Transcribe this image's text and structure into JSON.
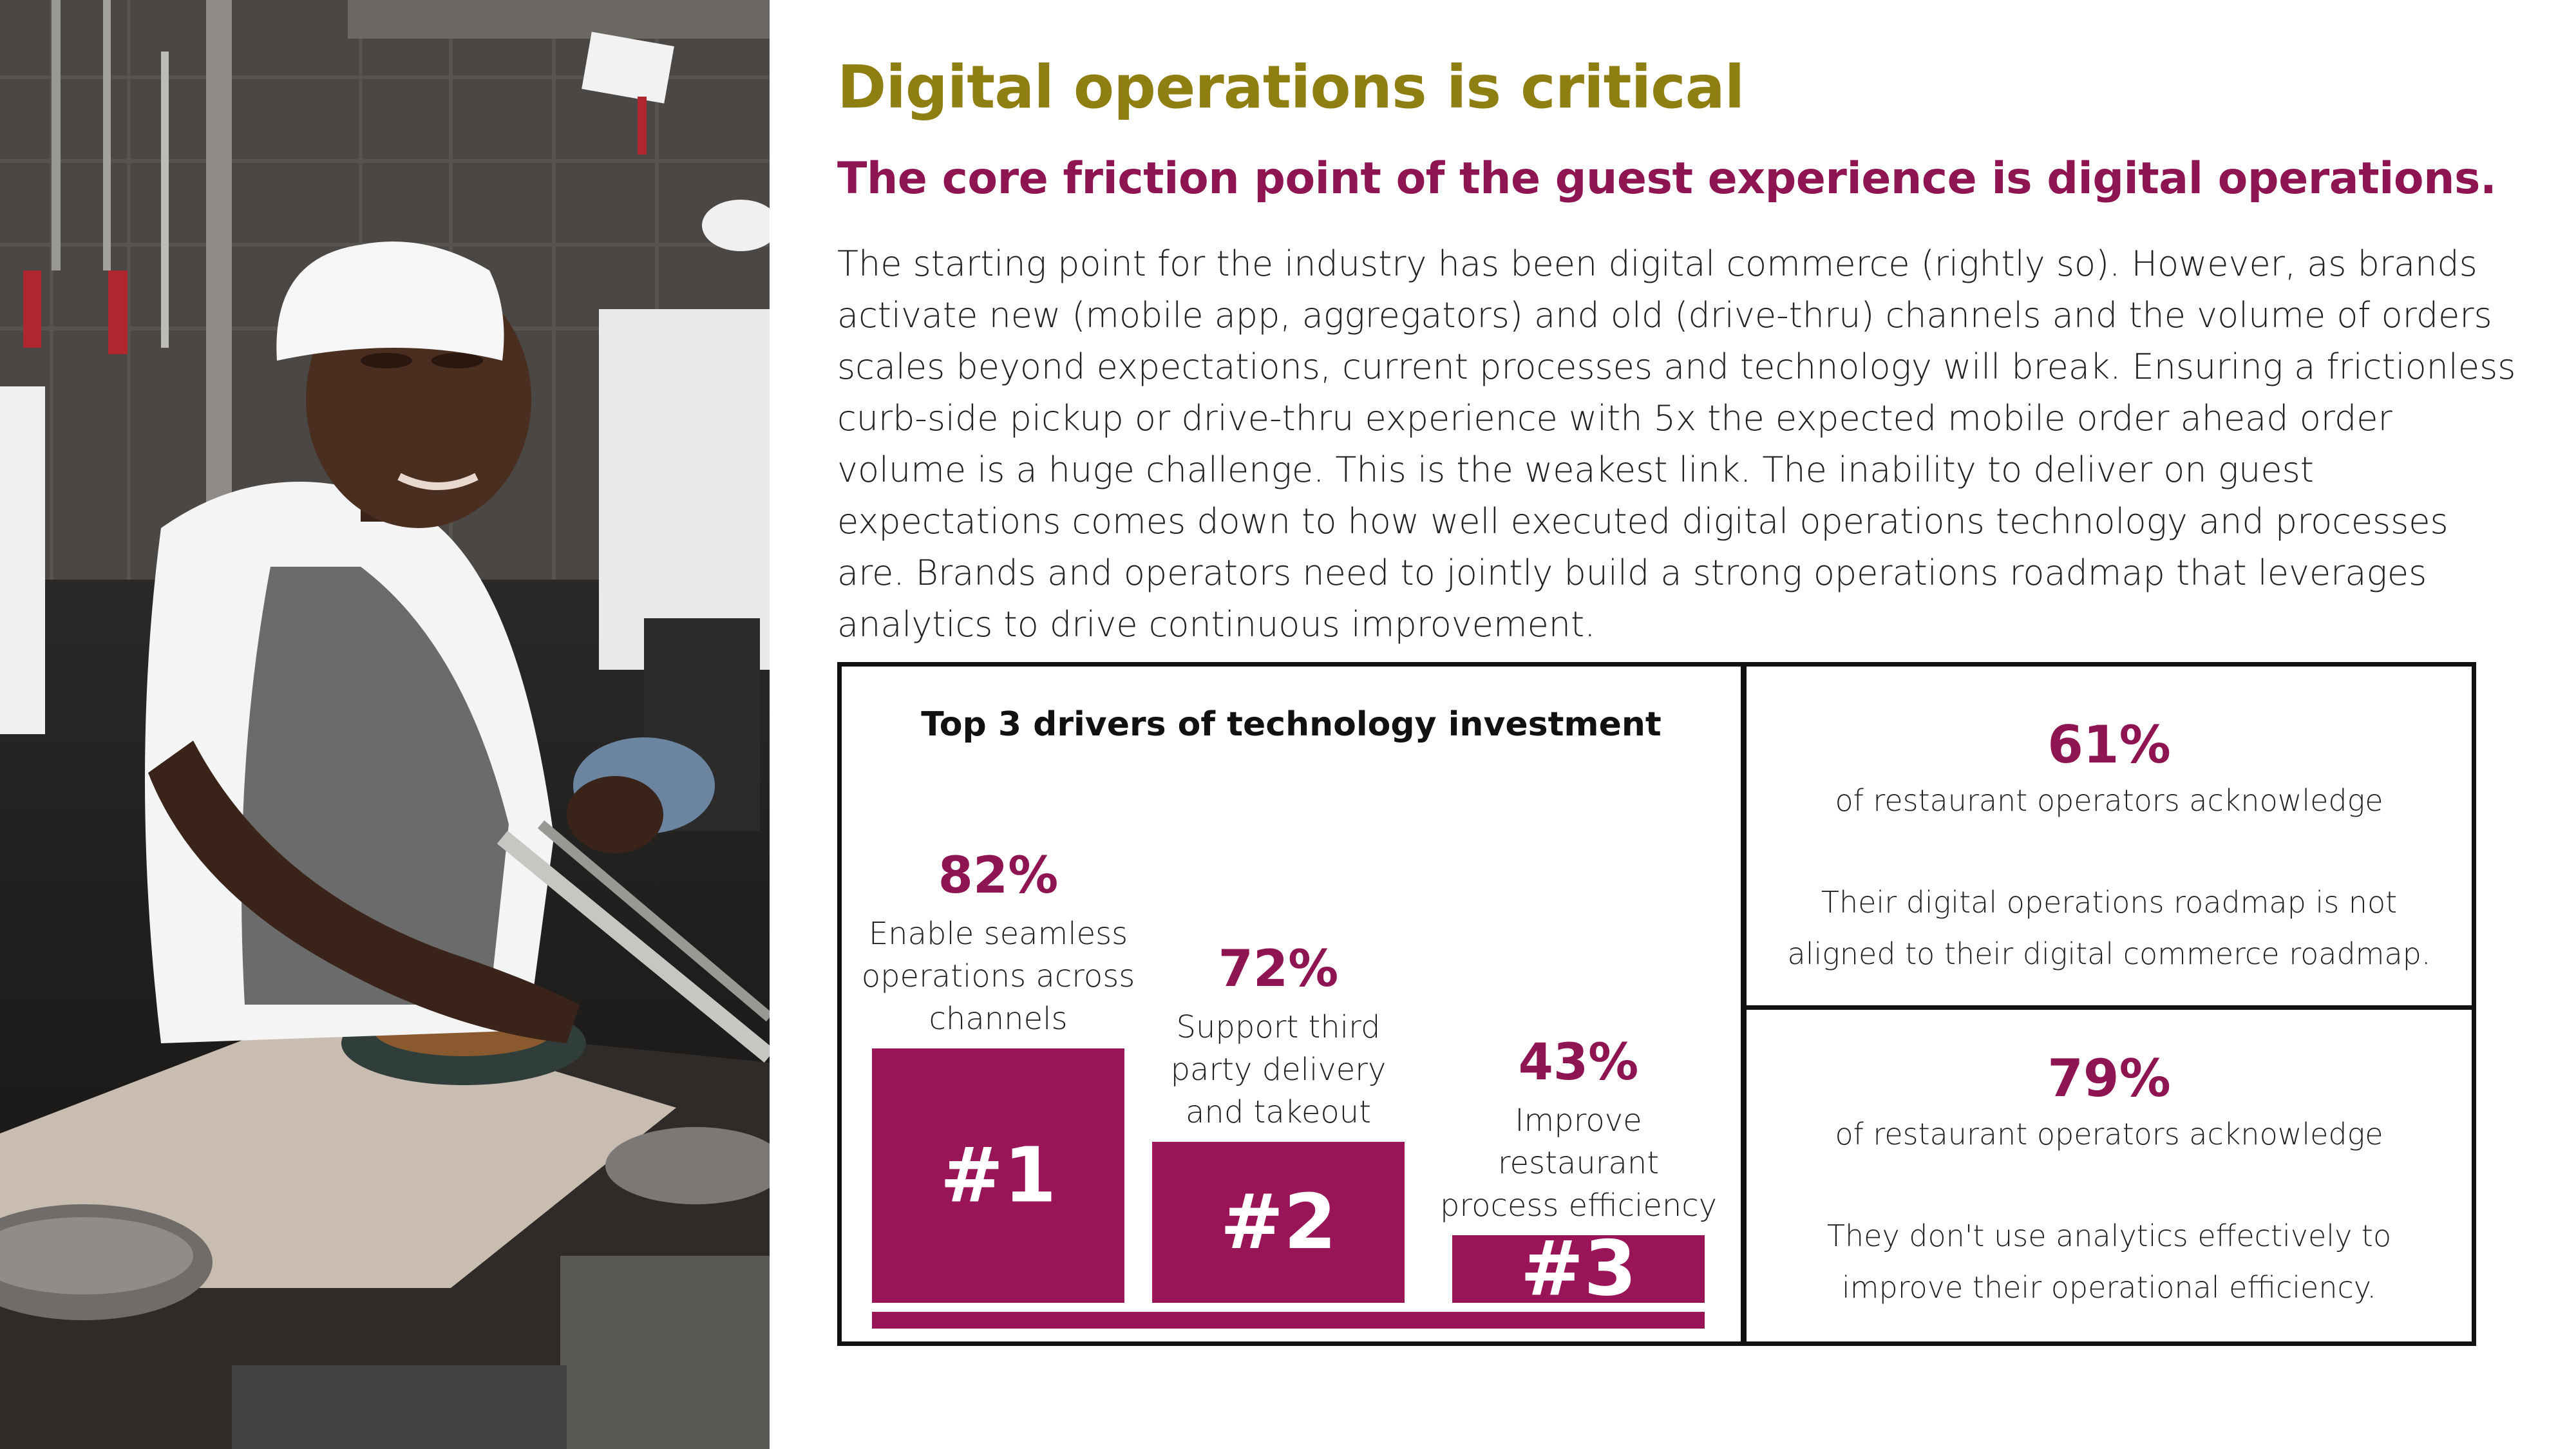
{
  "header": {
    "title": "Digital operations is critical",
    "subtitle": "The core friction point of the guest experience is digital operations."
  },
  "body": {
    "paragraph": "The starting point for the industry has been digital commerce (rightly so). However, as brands activate new (mobile app, aggregators) and old (drive-thru) channels and the volume of orders scales beyond expectations, current processes and technology will break. Ensuring a frictionless curb-side pickup or drive-thru experience with 5x the expected mobile order ahead order volume is a huge challenge. This is the weakest link. The inability to deliver on guest expectations comes down to how well executed digital operations technology and processes are. Brands and operators need to jointly build a strong operations roadmap that leverages analytics to drive continuous improvement."
  },
  "colors": {
    "title": "#8f7f12",
    "accent": "#8e1452",
    "bar": "#9a1458",
    "border": "#111111"
  },
  "photo": {
    "icon": "chef-kitchen-photo"
  },
  "chart_data": {
    "type": "bar",
    "title": "Top 3 drivers of technology investment",
    "categories": [
      "#1",
      "#2",
      "#3"
    ],
    "values": [
      82,
      72,
      43
    ],
    "value_labels": [
      "82%",
      "72%",
      "43%"
    ],
    "descriptions": [
      [
        "Enable seamless",
        "operations across",
        "channels"
      ],
      [
        "Support third",
        "party delivery",
        "and takeout"
      ],
      [
        "Improve",
        "restaurant",
        "process efficiency"
      ]
    ],
    "ranks_visual": [
      3,
      2,
      1
    ]
  },
  "stats": [
    {
      "percent": "61%",
      "line1": "of restaurant operators acknowledge",
      "line2": "Their digital operations roadmap is not",
      "line3": "aligned to their digital commerce roadmap."
    },
    {
      "percent": "79%",
      "line1": "of restaurant operators acknowledge",
      "line2": "They don't use analytics effectively to",
      "line3": "improve their operational efficiency."
    }
  ]
}
